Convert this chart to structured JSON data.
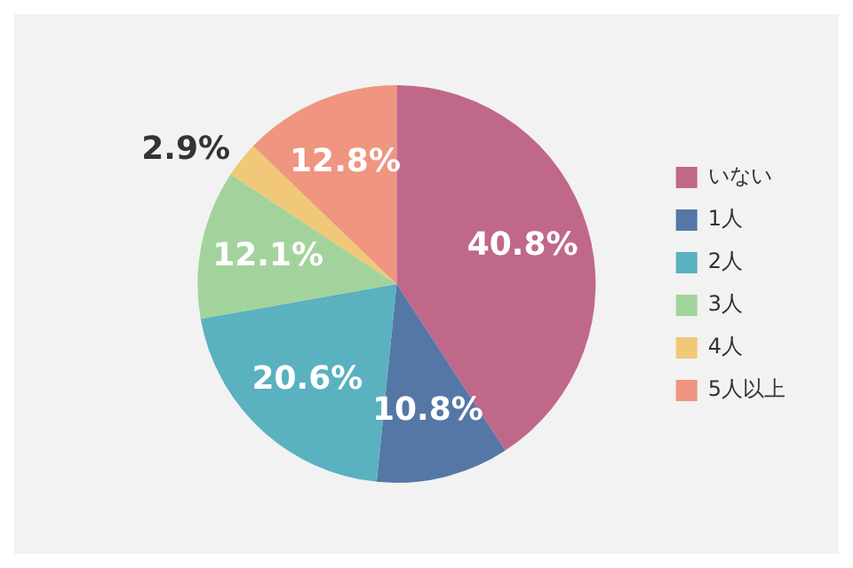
{
  "chart_data": {
    "type": "pie",
    "categories": [
      "いない",
      "1人",
      "2人",
      "3人",
      "4人",
      "5人以上"
    ],
    "values": [
      40.8,
      10.8,
      20.6,
      12.1,
      2.9,
      12.8
    ],
    "colors": [
      "#c0688a",
      "#5577a6",
      "#5ab1c0",
      "#a3d39c",
      "#f0c878",
      "#ef9580"
    ],
    "value_labels": [
      "40.8%",
      "10.8%",
      "20.6%",
      "12.1%",
      "2.9%",
      "12.8%"
    ],
    "legend": "right"
  }
}
